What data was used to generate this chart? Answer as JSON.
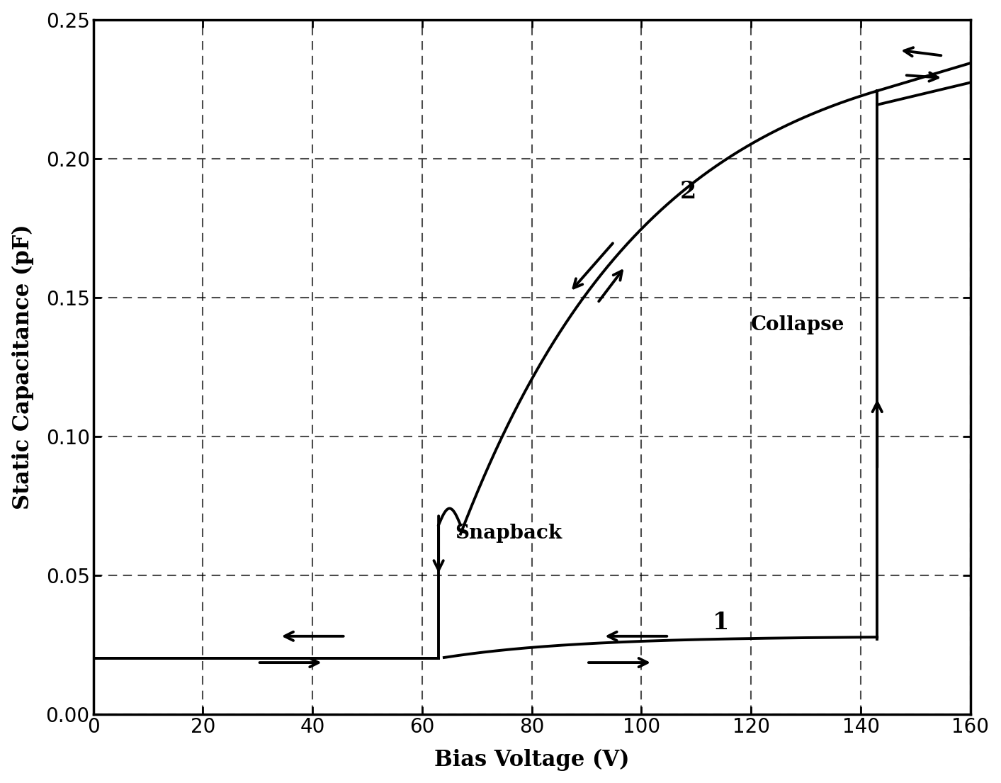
{
  "title": "",
  "xlabel": "Bias Voltage (V)",
  "ylabel": "Static Capacitance (pF)",
  "xlim": [
    0,
    160
  ],
  "ylim": [
    0,
    0.25
  ],
  "xticks": [
    0,
    20,
    40,
    60,
    80,
    100,
    120,
    140,
    160
  ],
  "yticks": [
    0,
    0.05,
    0.1,
    0.15,
    0.2,
    0.25
  ],
  "background_color": "#ffffff",
  "line_color": "#000000",
  "label_snapback": "Snapback",
  "label_collapse": "Collapse",
  "label_1": "1",
  "label_2": "2",
  "snap_voltage": 63,
  "collapse_voltage": 143,
  "lower_cap": 0.02,
  "snap_up_cap": 0.07,
  "collapse_cap_low": 0.027,
  "collapse_cap_high": 0.24
}
